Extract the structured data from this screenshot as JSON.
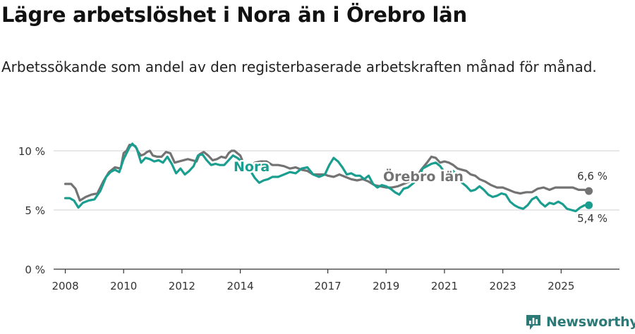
{
  "title": "Lägre arbetslöshet i Nora än i Örebro län",
  "subtitle": "Arbetssökande som andel av den registerbaserade arbetskraften månad för månad.",
  "brand": "Newsworthy",
  "colors": {
    "nora": "#1a9e8f",
    "orebro": "#737373",
    "grid": "#d9d9d9",
    "axis": "#333333"
  },
  "chart_data": {
    "type": "line",
    "title": "Lägre arbetslöshet i Nora än i Örebro län",
    "ylabel": "",
    "xlabel": "",
    "ylim": [
      0,
      10
    ],
    "xlim": [
      2007.6,
      2027.0
    ],
    "y_ticks": [
      {
        "value": 0,
        "label": "0 %"
      },
      {
        "value": 5,
        "label": "5 %"
      },
      {
        "value": 10,
        "label": "10 %"
      }
    ],
    "x_ticks": [
      {
        "value": 2008,
        "label": "2008"
      },
      {
        "value": 2010,
        "label": "2010"
      },
      {
        "value": 2012,
        "label": "2012"
      },
      {
        "value": 2014,
        "label": "2014"
      },
      {
        "value": 2017,
        "label": "2017"
      },
      {
        "value": 2019,
        "label": "2019"
      },
      {
        "value": 2021,
        "label": "2021"
      },
      {
        "value": 2023,
        "label": "2023"
      },
      {
        "value": 2025,
        "label": "2025"
      }
    ],
    "series": [
      {
        "name": "Örebro län",
        "label": "Örebro län",
        "end_label": "6,6 %",
        "points": [
          [
            2008.0,
            7.2
          ],
          [
            2008.2,
            7.2
          ],
          [
            2008.35,
            6.8
          ],
          [
            2008.5,
            5.8
          ],
          [
            2008.7,
            6.1
          ],
          [
            2008.9,
            6.3
          ],
          [
            2009.1,
            6.4
          ],
          [
            2009.3,
            7.4
          ],
          [
            2009.5,
            8.2
          ],
          [
            2009.7,
            8.6
          ],
          [
            2009.9,
            8.5
          ],
          [
            2010.0,
            9.8
          ],
          [
            2010.1,
            10.0
          ],
          [
            2010.2,
            10.5
          ],
          [
            2010.3,
            10.5
          ],
          [
            2010.4,
            10.4
          ],
          [
            2010.5,
            9.9
          ],
          [
            2010.6,
            9.6
          ],
          [
            2010.7,
            9.7
          ],
          [
            2010.8,
            9.9
          ],
          [
            2010.9,
            10.0
          ],
          [
            2011.0,
            9.6
          ],
          [
            2011.15,
            9.5
          ],
          [
            2011.3,
            9.5
          ],
          [
            2011.45,
            9.9
          ],
          [
            2011.6,
            9.8
          ],
          [
            2011.75,
            9.0
          ],
          [
            2011.9,
            9.1
          ],
          [
            2012.05,
            9.2
          ],
          [
            2012.2,
            9.3
          ],
          [
            2012.35,
            9.2
          ],
          [
            2012.5,
            9.1
          ],
          [
            2012.6,
            9.7
          ],
          [
            2012.75,
            9.9
          ],
          [
            2012.9,
            9.6
          ],
          [
            2013.05,
            9.2
          ],
          [
            2013.2,
            9.3
          ],
          [
            2013.35,
            9.5
          ],
          [
            2013.5,
            9.4
          ],
          [
            2013.6,
            9.8
          ],
          [
            2013.7,
            10.0
          ],
          [
            2013.8,
            10.0
          ],
          [
            2013.9,
            9.8
          ],
          [
            2014.0,
            9.6
          ],
          [
            2014.1,
            9.0
          ],
          [
            2014.2,
            8.6
          ],
          [
            2014.3,
            8.6
          ],
          [
            2014.4,
            8.7
          ],
          [
            2014.5,
            9.0
          ],
          [
            2014.7,
            9.1
          ],
          [
            2014.9,
            9.1
          ],
          [
            2015.1,
            8.8
          ],
          [
            2015.3,
            8.8
          ],
          [
            2015.5,
            8.7
          ],
          [
            2015.7,
            8.5
          ],
          [
            2015.9,
            8.6
          ],
          [
            2016.1,
            8.4
          ],
          [
            2016.3,
            8.3
          ],
          [
            2016.5,
            8.0
          ],
          [
            2016.7,
            8.0
          ],
          [
            2016.9,
            8.0
          ],
          [
            2017.0,
            7.9
          ],
          [
            2017.2,
            7.8
          ],
          [
            2017.4,
            8.0
          ],
          [
            2017.6,
            7.8
          ],
          [
            2017.8,
            7.6
          ],
          [
            2018.0,
            7.5
          ],
          [
            2018.2,
            7.6
          ],
          [
            2018.4,
            7.4
          ],
          [
            2018.6,
            7.1
          ],
          [
            2018.8,
            7.0
          ],
          [
            2019.0,
            6.9
          ],
          [
            2019.2,
            6.9
          ],
          [
            2019.4,
            7.0
          ],
          [
            2019.6,
            7.2
          ],
          [
            2019.8,
            7.4
          ],
          [
            2020.0,
            7.6
          ],
          [
            2020.2,
            8.4
          ],
          [
            2020.4,
            9.0
          ],
          [
            2020.55,
            9.5
          ],
          [
            2020.7,
            9.4
          ],
          [
            2020.85,
            9.0
          ],
          [
            2021.0,
            9.1
          ],
          [
            2021.15,
            9.0
          ],
          [
            2021.3,
            8.8
          ],
          [
            2021.45,
            8.5
          ],
          [
            2021.6,
            8.4
          ],
          [
            2021.75,
            8.3
          ],
          [
            2021.9,
            8.0
          ],
          [
            2022.05,
            7.9
          ],
          [
            2022.2,
            7.6
          ],
          [
            2022.4,
            7.4
          ],
          [
            2022.6,
            7.1
          ],
          [
            2022.8,
            6.9
          ],
          [
            2023.0,
            6.9
          ],
          [
            2023.2,
            6.7
          ],
          [
            2023.4,
            6.5
          ],
          [
            2023.6,
            6.4
          ],
          [
            2023.8,
            6.5
          ],
          [
            2024.0,
            6.5
          ],
          [
            2024.2,
            6.8
          ],
          [
            2024.4,
            6.9
          ],
          [
            2024.6,
            6.7
          ],
          [
            2024.8,
            6.9
          ],
          [
            2025.0,
            6.9
          ],
          [
            2025.2,
            6.9
          ],
          [
            2025.4,
            6.9
          ],
          [
            2025.6,
            6.7
          ],
          [
            2025.8,
            6.7
          ],
          [
            2025.95,
            6.6
          ]
        ]
      },
      {
        "name": "Nora",
        "label": "Nora",
        "end_label": "5,4 %",
        "points": [
          [
            2008.0,
            6.0
          ],
          [
            2008.15,
            6.0
          ],
          [
            2008.3,
            5.8
          ],
          [
            2008.45,
            5.2
          ],
          [
            2008.6,
            5.6
          ],
          [
            2008.8,
            5.8
          ],
          [
            2009.0,
            5.9
          ],
          [
            2009.2,
            6.6
          ],
          [
            2009.4,
            7.8
          ],
          [
            2009.55,
            8.2
          ],
          [
            2009.7,
            8.4
          ],
          [
            2009.85,
            8.2
          ],
          [
            2010.0,
            9.3
          ],
          [
            2010.1,
            9.8
          ],
          [
            2010.2,
            10.3
          ],
          [
            2010.3,
            10.6
          ],
          [
            2010.45,
            10.2
          ],
          [
            2010.6,
            9.0
          ],
          [
            2010.75,
            9.4
          ],
          [
            2010.9,
            9.3
          ],
          [
            2011.05,
            9.1
          ],
          [
            2011.2,
            9.2
          ],
          [
            2011.35,
            9.0
          ],
          [
            2011.5,
            9.5
          ],
          [
            2011.65,
            8.9
          ],
          [
            2011.8,
            8.1
          ],
          [
            2011.95,
            8.5
          ],
          [
            2012.1,
            8.0
          ],
          [
            2012.25,
            8.3
          ],
          [
            2012.4,
            8.7
          ],
          [
            2012.55,
            9.6
          ],
          [
            2012.7,
            9.7
          ],
          [
            2012.85,
            9.2
          ],
          [
            2013.0,
            8.8
          ],
          [
            2013.15,
            8.9
          ],
          [
            2013.3,
            8.8
          ],
          [
            2013.45,
            8.8
          ],
          [
            2013.6,
            9.2
          ],
          [
            2013.75,
            9.6
          ],
          [
            2013.9,
            9.4
          ],
          [
            2014.05,
            9.1
          ],
          [
            2014.2,
            8.6
          ],
          [
            2014.35,
            8.3
          ],
          [
            2014.5,
            7.7
          ],
          [
            2014.65,
            7.3
          ],
          [
            2014.8,
            7.5
          ],
          [
            2014.95,
            7.6
          ],
          [
            2015.1,
            7.8
          ],
          [
            2015.3,
            7.8
          ],
          [
            2015.5,
            8.0
          ],
          [
            2015.7,
            8.2
          ],
          [
            2015.9,
            8.1
          ],
          [
            2016.1,
            8.5
          ],
          [
            2016.3,
            8.6
          ],
          [
            2016.5,
            8.0
          ],
          [
            2016.7,
            7.8
          ],
          [
            2016.9,
            8.0
          ],
          [
            2017.05,
            8.8
          ],
          [
            2017.2,
            9.4
          ],
          [
            2017.35,
            9.1
          ],
          [
            2017.5,
            8.6
          ],
          [
            2017.65,
            8.0
          ],
          [
            2017.8,
            8.1
          ],
          [
            2017.95,
            7.9
          ],
          [
            2018.1,
            7.9
          ],
          [
            2018.25,
            7.6
          ],
          [
            2018.4,
            7.9
          ],
          [
            2018.55,
            7.2
          ],
          [
            2018.7,
            6.9
          ],
          [
            2018.85,
            7.1
          ],
          [
            2019.0,
            7.0
          ],
          [
            2019.15,
            6.8
          ],
          [
            2019.3,
            6.5
          ],
          [
            2019.45,
            6.3
          ],
          [
            2019.6,
            6.8
          ],
          [
            2019.75,
            6.9
          ],
          [
            2019.9,
            7.2
          ],
          [
            2020.1,
            7.6
          ],
          [
            2020.25,
            8.5
          ],
          [
            2020.4,
            8.7
          ],
          [
            2020.55,
            8.9
          ],
          [
            2020.7,
            9.0
          ],
          [
            2020.85,
            8.7
          ],
          [
            2021.0,
            8.2
          ],
          [
            2021.15,
            8.2
          ],
          [
            2021.3,
            8.3
          ],
          [
            2021.45,
            7.8
          ],
          [
            2021.6,
            7.3
          ],
          [
            2021.75,
            7.0
          ],
          [
            2021.9,
            6.6
          ],
          [
            2022.05,
            6.7
          ],
          [
            2022.2,
            7.0
          ],
          [
            2022.35,
            6.7
          ],
          [
            2022.5,
            6.3
          ],
          [
            2022.65,
            6.1
          ],
          [
            2022.8,
            6.2
          ],
          [
            2022.95,
            6.4
          ],
          [
            2023.1,
            6.3
          ],
          [
            2023.25,
            5.7
          ],
          [
            2023.4,
            5.4
          ],
          [
            2023.55,
            5.2
          ],
          [
            2023.7,
            5.1
          ],
          [
            2023.85,
            5.4
          ],
          [
            2024.0,
            5.9
          ],
          [
            2024.15,
            6.1
          ],
          [
            2024.3,
            5.6
          ],
          [
            2024.45,
            5.3
          ],
          [
            2024.6,
            5.6
          ],
          [
            2024.75,
            5.5
          ],
          [
            2024.9,
            5.7
          ],
          [
            2025.05,
            5.5
          ],
          [
            2025.2,
            5.1
          ],
          [
            2025.35,
            5.0
          ],
          [
            2025.5,
            4.9
          ],
          [
            2025.65,
            5.2
          ],
          [
            2025.8,
            5.4
          ],
          [
            2025.95,
            5.4
          ]
        ]
      }
    ]
  }
}
